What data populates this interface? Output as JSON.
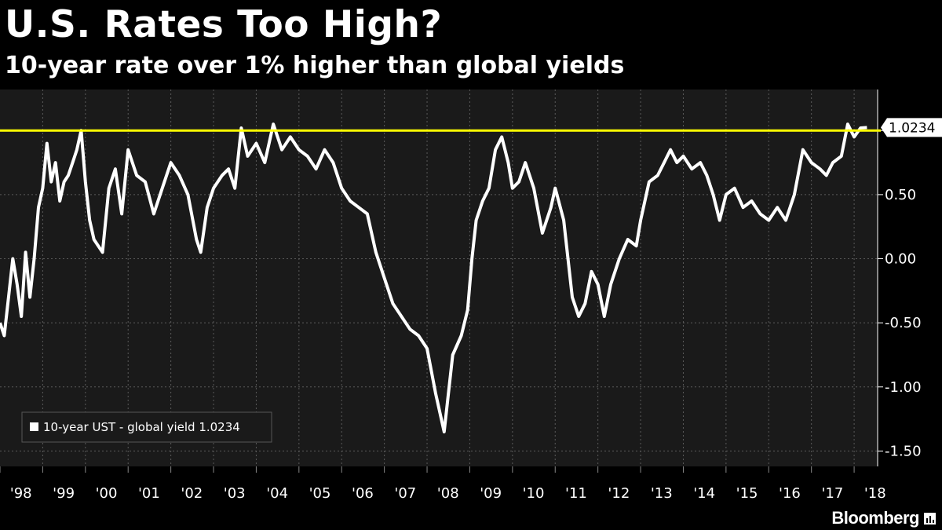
{
  "header": {
    "title": "U.S. Rates Too High?",
    "subtitle": "10-year rate over 1% higher than global yields"
  },
  "brand": {
    "name": "Bloomberg",
    "icon": "bar-chart-icon"
  },
  "colors": {
    "background": "#000000",
    "plot_background": "#1a1a1a",
    "series": "#ffffff",
    "reference_line": "#ffff00",
    "grid": "#5a5a5a"
  },
  "chart_data": {
    "type": "line",
    "title": "U.S. Rates Too High?",
    "subtitle": "10-year rate over 1% higher than global yields",
    "xlim": [
      1998.0,
      2018.55
    ],
    "ylim": [
      -1.62,
      1.32
    ],
    "y_ticks": [
      -1.5,
      -1.0,
      -0.5,
      0.0,
      0.5,
      1.0
    ],
    "y_tick_labels": [
      "-1.50",
      "-1.00",
      "-0.50",
      "0.00",
      "0.50",
      ""
    ],
    "x_tick_labels": [
      "'98",
      "'99",
      "'00",
      "'01",
      "'02",
      "'03",
      "'04",
      "'05",
      "'06",
      "'07",
      "'08",
      "'09",
      "'10",
      "'11",
      "'12",
      "'13",
      "'14",
      "'15",
      "'16",
      "'17",
      "'18"
    ],
    "grid": true,
    "legend_position": "bottom-left",
    "legend_label": "10-year UST - global yield 1.0234",
    "last_value_label": "1.0234",
    "reference_line": {
      "y": 1.0,
      "color": "#ffff00"
    },
    "series": [
      {
        "name": "10-year UST - global yield",
        "color": "#ffffff",
        "x": [
          1998.0,
          1998.1,
          1998.2,
          1998.3,
          1998.4,
          1998.5,
          1998.6,
          1998.7,
          1998.8,
          1998.9,
          1999.0,
          1999.1,
          1999.2,
          1999.3,
          1999.4,
          1999.5,
          1999.6,
          1999.7,
          1999.8,
          1999.9,
          2000.0,
          2000.1,
          2000.2,
          2000.4,
          2000.55,
          2000.7,
          2000.85,
          2001.0,
          2001.2,
          2001.4,
          2001.6,
          2001.8,
          2002.0,
          2002.2,
          2002.4,
          2002.6,
          2002.7,
          2002.85,
          2003.0,
          2003.2,
          2003.35,
          2003.5,
          2003.65,
          2003.8,
          2004.0,
          2004.2,
          2004.4,
          2004.6,
          2004.8,
          2005.0,
          2005.2,
          2005.4,
          2005.6,
          2005.8,
          2006.0,
          2006.2,
          2006.4,
          2006.6,
          2006.8,
          2007.0,
          2007.2,
          2007.4,
          2007.6,
          2007.8,
          2008.0,
          2008.2,
          2008.4,
          2008.6,
          2008.8,
          2008.95,
          2009.05,
          2009.15,
          2009.3,
          2009.45,
          2009.6,
          2009.75,
          2009.9,
          2010.0,
          2010.15,
          2010.3,
          2010.5,
          2010.7,
          2010.9,
          2011.0,
          2011.2,
          2011.4,
          2011.55,
          2011.7,
          2011.85,
          2012.0,
          2012.15,
          2012.3,
          2012.5,
          2012.7,
          2012.9,
          2013.0,
          2013.2,
          2013.4,
          2013.55,
          2013.7,
          2013.85,
          2014.0,
          2014.2,
          2014.4,
          2014.55,
          2014.7,
          2014.85,
          2015.0,
          2015.2,
          2015.4,
          2015.6,
          2015.8,
          2016.0,
          2016.2,
          2016.4,
          2016.6,
          2016.8,
          2017.0,
          2017.2,
          2017.35,
          2017.5,
          2017.7,
          2017.85,
          2018.0,
          2018.15,
          2018.3
        ],
        "y": [
          -0.5,
          -0.6,
          -0.3,
          0.0,
          -0.2,
          -0.45,
          0.05,
          -0.3,
          0.0,
          0.4,
          0.55,
          0.9,
          0.6,
          0.75,
          0.45,
          0.6,
          0.65,
          0.75,
          0.85,
          1.0,
          0.6,
          0.3,
          0.15,
          0.05,
          0.55,
          0.7,
          0.35,
          0.85,
          0.65,
          0.6,
          0.35,
          0.55,
          0.75,
          0.65,
          0.5,
          0.15,
          0.05,
          0.4,
          0.55,
          0.65,
          0.7,
          0.55,
          1.02,
          0.8,
          0.9,
          0.75,
          1.05,
          0.85,
          0.95,
          0.85,
          0.8,
          0.7,
          0.85,
          0.75,
          0.55,
          0.45,
          0.4,
          0.35,
          0.05,
          -0.15,
          -0.35,
          -0.45,
          -0.55,
          -0.6,
          -0.7,
          -1.05,
          -1.35,
          -0.75,
          -0.6,
          -0.4,
          0.0,
          0.3,
          0.45,
          0.55,
          0.85,
          0.95,
          0.75,
          0.55,
          0.6,
          0.75,
          0.55,
          0.2,
          0.4,
          0.55,
          0.3,
          -0.3,
          -0.45,
          -0.35,
          -0.1,
          -0.2,
          -0.45,
          -0.2,
          0.0,
          0.15,
          0.1,
          0.3,
          0.6,
          0.65,
          0.75,
          0.85,
          0.75,
          0.8,
          0.7,
          0.75,
          0.65,
          0.5,
          0.3,
          0.5,
          0.55,
          0.4,
          0.45,
          0.35,
          0.3,
          0.4,
          0.3,
          0.5,
          0.85,
          0.75,
          0.7,
          0.65,
          0.75,
          0.8,
          1.05,
          0.95,
          1.02,
          1.0234
        ]
      }
    ]
  }
}
